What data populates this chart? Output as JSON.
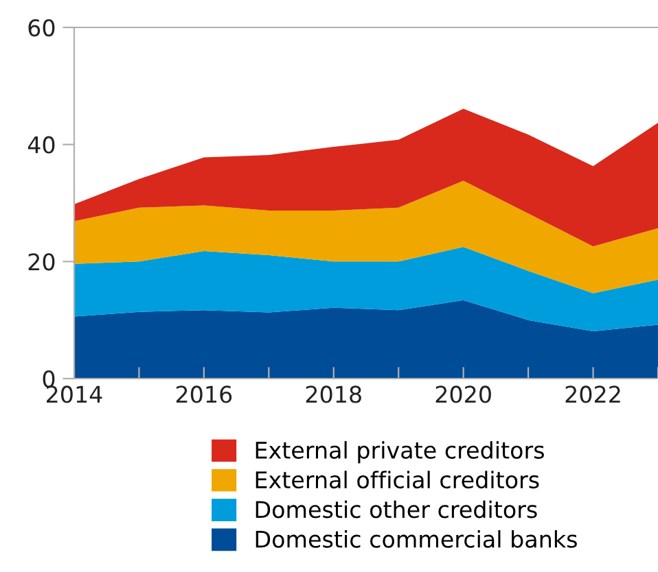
{
  "chart_data": {
    "type": "area",
    "stacked": true,
    "x": [
      2014,
      2015,
      2016,
      2017,
      2018,
      2019,
      2020,
      2021,
      2022,
      2023
    ],
    "series": [
      {
        "name": "Domestic commercial banks",
        "color": "#004c97",
        "values": [
          10.6,
          11.4,
          11.7,
          11.3,
          12.1,
          11.7,
          13.4,
          10.0,
          8.1,
          9.2
        ]
      },
      {
        "name": "Domestic other creditors",
        "color": "#009ddc",
        "values": [
          9.0,
          8.6,
          10.1,
          9.8,
          7.9,
          8.3,
          9.1,
          8.4,
          6.5,
          7.7
        ]
      },
      {
        "name": "External official creditors",
        "color": "#f0a800",
        "values": [
          7.3,
          9.2,
          7.8,
          7.6,
          8.7,
          9.2,
          11.3,
          9.8,
          8.0,
          8.8
        ]
      },
      {
        "name": "External private creditors",
        "color": "#d9291c",
        "values": [
          2.9,
          4.9,
          8.2,
          9.5,
          10.9,
          11.6,
          12.3,
          13.5,
          13.7,
          18.0
        ]
      }
    ],
    "xlim": [
      2014,
      2023
    ],
    "xticks": [
      2014,
      {
        "value": 2015,
        "label": null
      },
      2016,
      {
        "value": 2017,
        "label": null
      },
      2018,
      {
        "value": 2019,
        "label": null
      },
      2020,
      {
        "value": 2021,
        "label": null
      },
      2022,
      {
        "value": 2023,
        "label": null
      }
    ],
    "ylim": [
      0,
      60
    ],
    "yticks": [
      0,
      20,
      40,
      60
    ],
    "grid": false,
    "legend": "bottom"
  }
}
